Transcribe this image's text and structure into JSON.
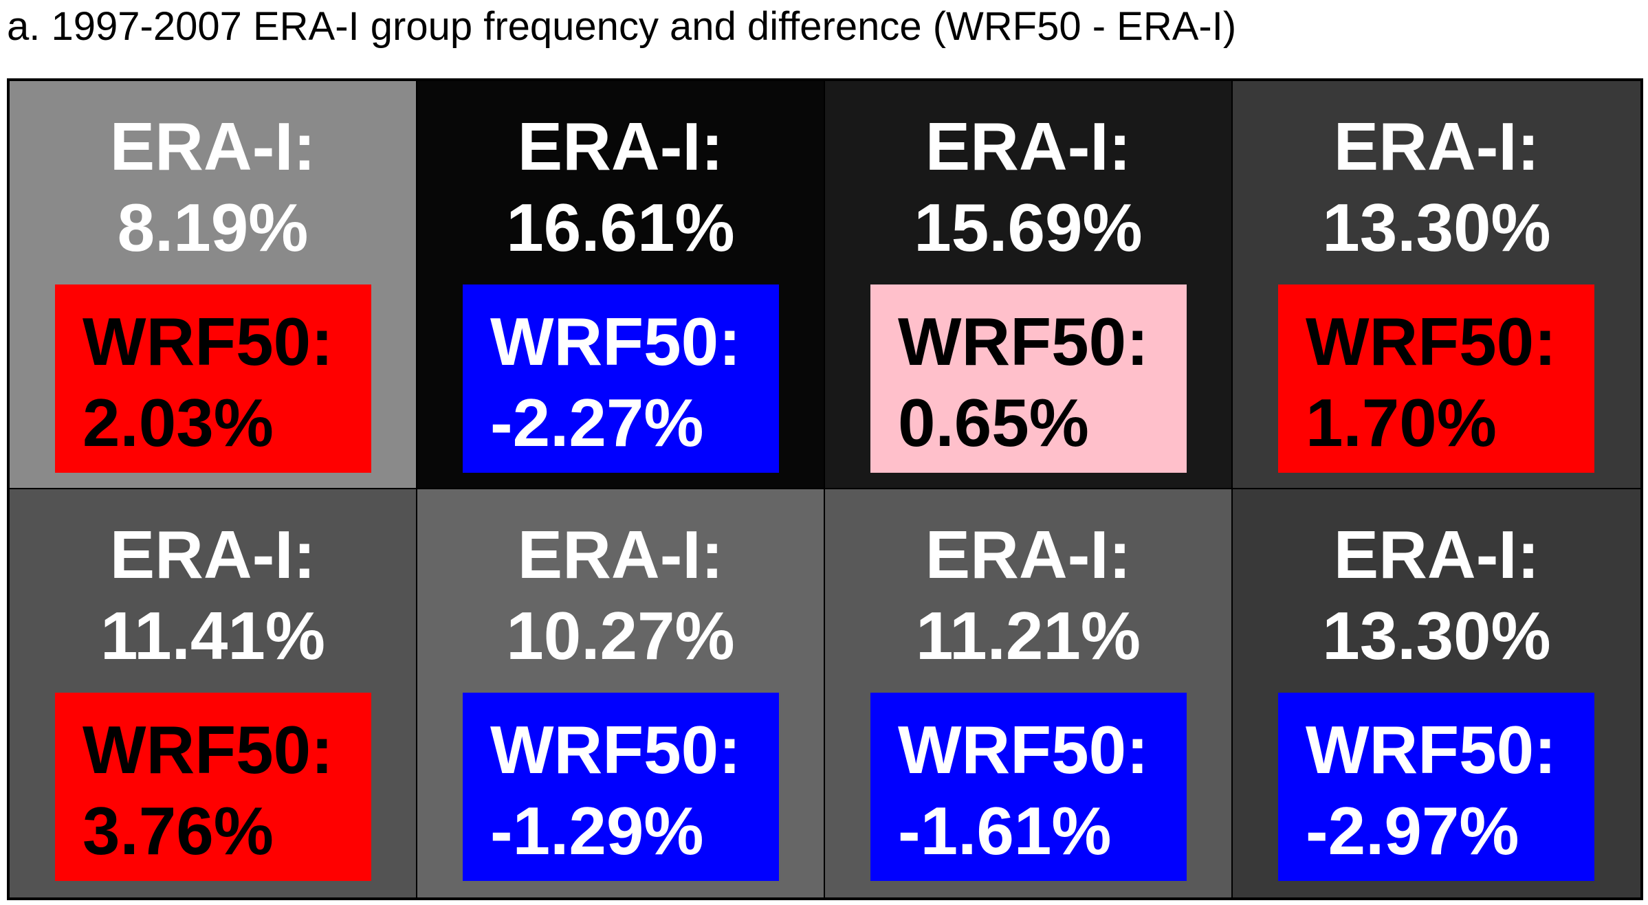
{
  "title": "a. 1997-2007 ERA-I group frequency and difference (WRF50 - ERA-I)",
  "chart_data": {
    "type": "heatmap",
    "title": "a. 1997-2007 ERA-I group frequency and difference (WRF50 - ERA-I)",
    "rows": 2,
    "cols": 4,
    "era_label": "ERA-I:",
    "wrf_label": "WRF50:",
    "cells": [
      {
        "row": 0,
        "col": 0,
        "era": "8.19%",
        "era_value": 8.19,
        "wrf": "2.03%",
        "wrf_value": 2.03,
        "bg": "#8a8a8a",
        "box": "#ff0000",
        "text": "#000000"
      },
      {
        "row": 0,
        "col": 1,
        "era": "16.61%",
        "era_value": 16.61,
        "wrf": "-2.27%",
        "wrf_value": -2.27,
        "bg": "#070707",
        "box": "#0000ff",
        "text": "#ffffff"
      },
      {
        "row": 0,
        "col": 2,
        "era": "15.69%",
        "era_value": 15.69,
        "wrf": "0.65%",
        "wrf_value": 0.65,
        "bg": "#181818",
        "box": "#ffc0cb",
        "text": "#000000"
      },
      {
        "row": 0,
        "col": 3,
        "era": "13.30%",
        "era_value": 13.3,
        "wrf": "1.70%",
        "wrf_value": 1.7,
        "bg": "#393939",
        "box": "#ff0000",
        "text": "#000000"
      },
      {
        "row": 1,
        "col": 0,
        "era": "11.41%",
        "era_value": 11.41,
        "wrf": "3.76%",
        "wrf_value": 3.76,
        "bg": "#535353",
        "box": "#ff0000",
        "text": "#000000"
      },
      {
        "row": 1,
        "col": 1,
        "era": "10.27%",
        "era_value": 10.27,
        "wrf": "-1.29%",
        "wrf_value": -1.29,
        "bg": "#666666",
        "box": "#0000ff",
        "text": "#ffffff"
      },
      {
        "row": 1,
        "col": 2,
        "era": "11.21%",
        "era_value": 11.21,
        "wrf": "-1.61%",
        "wrf_value": -1.61,
        "bg": "#595959",
        "box": "#0000ff",
        "text": "#ffffff"
      },
      {
        "row": 1,
        "col": 3,
        "era": "13.30%",
        "era_value": 13.3,
        "wrf": "-2.97%",
        "wrf_value": -2.97,
        "bg": "#393939",
        "box": "#0000ff",
        "text": "#ffffff"
      }
    ]
  }
}
